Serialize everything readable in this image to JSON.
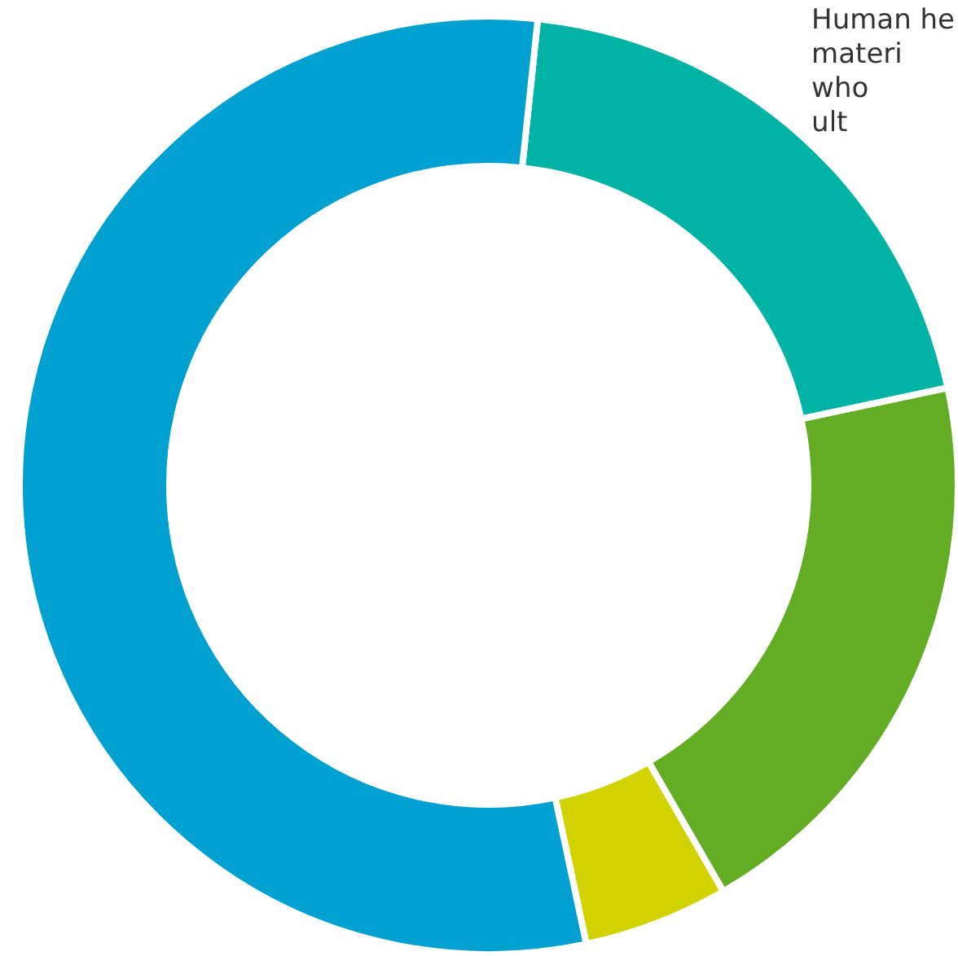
{
  "chart_data": {
    "type": "donut",
    "categories": [
      null,
      null,
      null,
      null
    ],
    "values": [
      20,
      20,
      5,
      55
    ],
    "colors": [
      "#00b3a4",
      "#63ad25",
      "#d2d200",
      "#00a0d0"
    ],
    "annotations": [
      "Human he\nmateri\nwho\nult"
    ]
  }
}
